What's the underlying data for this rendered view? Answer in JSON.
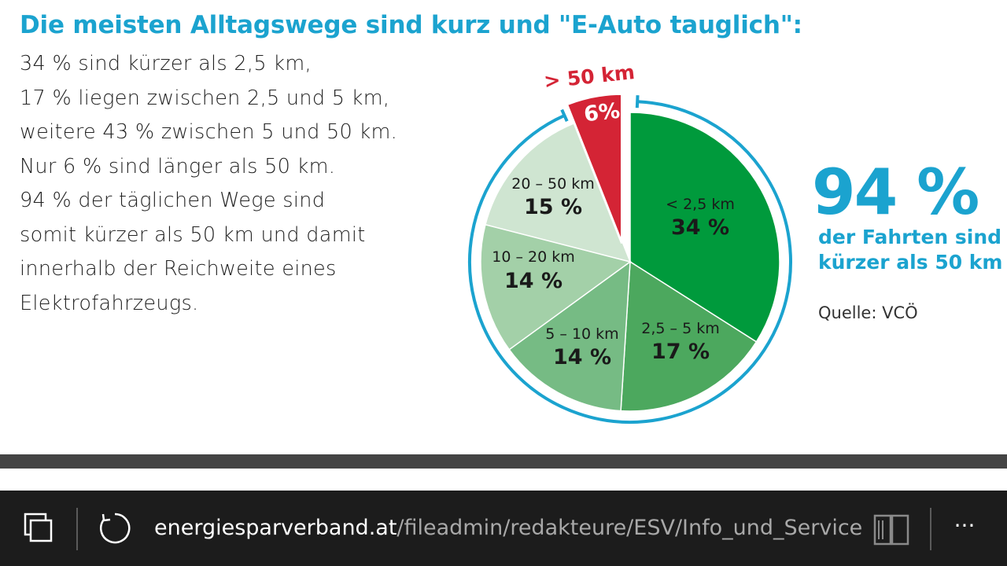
{
  "page": {
    "headline": "Die meisten Alltagswege sind kurz und \"E-Auto tauglich\":",
    "body_lines": [
      "34 % sind kürzer als 2,5 km,",
      "17 % liegen zwischen 2,5 und 5 km,",
      "weitere 43 % zwischen 5 und 50 km.",
      "Nur 6 % sind länger als 50 km.",
      "94 % der täglichen Wege sind",
      "somit kürzer als 50 km und damit",
      "innerhalb der Reichweite eines",
      "Elektrofahrzeugs."
    ],
    "highlight_value": "94 %",
    "highlight_caption_1": "der Fahrten sind",
    "highlight_caption_2": "kürzer als 50 km",
    "source": "Quelle: VCÖ",
    "colors": {
      "accent_blue": "#1ba3cf",
      "highlight_red": "#d42435"
    }
  },
  "chart_data": {
    "type": "pie",
    "slices": [
      {
        "label": "< 2,5 km",
        "value": 34,
        "value_label": "34 %",
        "color": "#009a3c"
      },
      {
        "label": "2,5 – 5 km",
        "value": 17,
        "value_label": "17 %",
        "color": "#4ca85e"
      },
      {
        "label": "5 – 10 km",
        "value": 14,
        "value_label": "14 %",
        "color": "#76bb84"
      },
      {
        "label": "10 – 20 km",
        "value": 14,
        "value_label": "14 %",
        "color": "#a3d0a8"
      },
      {
        "label": "20 – 50 km",
        "value": 15,
        "value_label": "15 %",
        "color": "#cfe5d1"
      },
      {
        "label": "> 50 km",
        "value": 6,
        "value_label": "6%",
        "color": "#d42435",
        "exploded": true
      }
    ],
    "legend": "none"
  },
  "browser": {
    "url_domain": "energiesparverband.at",
    "url_path": "/fileadmin/redakteure/ESV/Info_und_Service/",
    "more_label": "···",
    "icons": [
      "tabs-icon",
      "refresh-icon",
      "reading-view-icon",
      "more-icon"
    ]
  }
}
